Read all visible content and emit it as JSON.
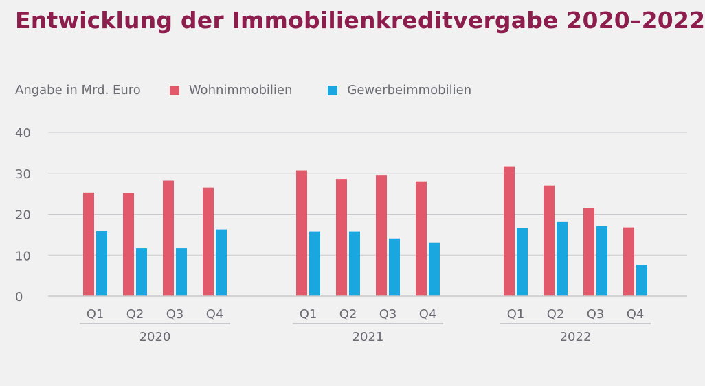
{
  "title": "Entwicklung der Immobilienkreditvergabe 2020–2022",
  "colors": {
    "wohn": "#e2596b",
    "gewerbe": "#1aa7df",
    "grid": "#c7c7cc",
    "text": "#6b6b74",
    "title": "#8c1d4c"
  },
  "chart_data": {
    "type": "bar",
    "title": "Entwicklung der Immobilienkreditvergabe 2020–2022",
    "ylabel": "Angabe in Mrd. Euro",
    "ylim": [
      0,
      40
    ],
    "yticks": [
      "0",
      "10",
      "20",
      "30",
      "40"
    ],
    "grid": true,
    "legend_position": "top-left",
    "groups": [
      {
        "label": "2020",
        "quarters": [
          "Q1",
          "Q2",
          "Q3",
          "Q4"
        ]
      },
      {
        "label": "2021",
        "quarters": [
          "Q1",
          "Q2",
          "Q3",
          "Q4"
        ]
      },
      {
        "label": "2022",
        "quarters": [
          "Q1",
          "Q2",
          "Q3",
          "Q4"
        ]
      }
    ],
    "series": [
      {
        "name": "Wohnimmobilien",
        "values": [
          25.3,
          25.2,
          28.2,
          26.5,
          30.7,
          28.6,
          29.6,
          28.0,
          31.7,
          27.0,
          21.5,
          16.8
        ]
      },
      {
        "name": "Gewerbeimmobilien",
        "values": [
          15.9,
          11.7,
          11.7,
          16.3,
          15.8,
          15.8,
          14.1,
          13.1,
          16.7,
          18.1,
          17.1,
          7.7
        ]
      }
    ]
  }
}
